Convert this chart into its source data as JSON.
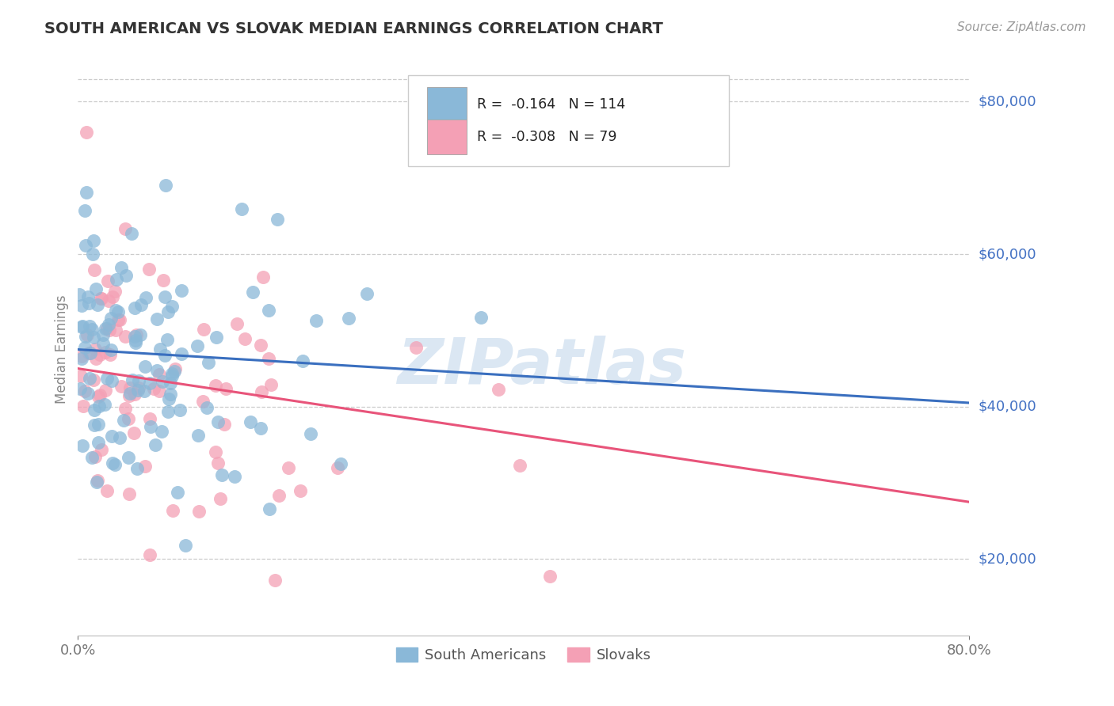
{
  "title": "SOUTH AMERICAN VS SLOVAK MEDIAN EARNINGS CORRELATION CHART",
  "source_text": "Source: ZipAtlas.com",
  "ylabel": "Median Earnings",
  "xmin": 0.0,
  "xmax": 0.8,
  "ymin": 10000,
  "ymax": 85000,
  "yticks": [
    20000,
    40000,
    60000,
    80000
  ],
  "xticks": [
    0.0,
    0.8
  ],
  "xtick_labels": [
    "0.0%",
    "80.0%"
  ],
  "ytick_labels": [
    "$20,000",
    "$40,000",
    "$60,000",
    "$80,000"
  ],
  "blue_color": "#8AB8D8",
  "pink_color": "#F4A0B5",
  "blue_line_color": "#3A6FBF",
  "pink_line_color": "#E8547A",
  "blue_r": -0.164,
  "blue_n": 114,
  "pink_r": -0.308,
  "pink_n": 79,
  "legend_blue_label": "South Americans",
  "legend_pink_label": "Slovaks",
  "watermark": "ZIPatlas",
  "background_color": "#ffffff",
  "grid_color": "#cccccc",
  "title_color": "#333333",
  "axis_label_color": "#888888",
  "tick_label_color": "#4472C4",
  "blue_line_y0": 47500,
  "blue_line_y1": 40500,
  "pink_line_y0": 45000,
  "pink_line_y1": 27500
}
